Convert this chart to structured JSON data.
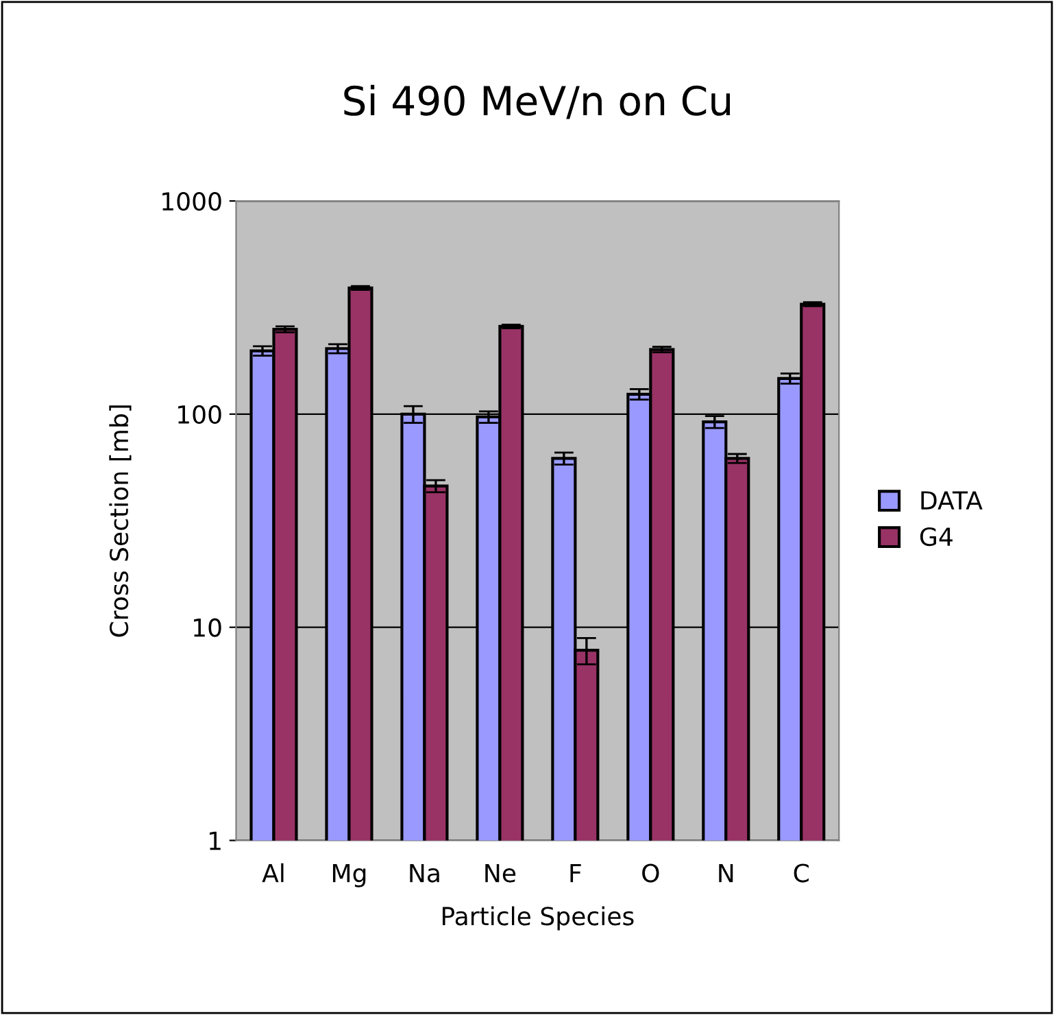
{
  "chart_data": {
    "type": "bar",
    "title": "Si 490 MeV/n on Cu",
    "xlabel": "Particle Species",
    "ylabel": "Cross Section [mb]",
    "categories": [
      "Al",
      "Mg",
      "Na",
      "Ne",
      "F",
      "O",
      "N",
      "C"
    ],
    "series": [
      {
        "name": "DATA",
        "color": "#9999ff",
        "values": [
          198,
          203,
          100,
          97,
          62,
          124,
          92,
          147
        ],
        "errors": [
          10,
          10,
          9,
          6,
          4,
          7,
          6,
          8
        ]
      },
      {
        "name": "G4",
        "color": "#993366",
        "values": [
          250,
          391,
          46,
          258,
          7.8,
          201,
          62,
          328
        ],
        "errors": [
          8,
          8,
          3,
          5,
          1.1,
          6,
          3,
          7
        ]
      }
    ],
    "log": "y",
    "ylim": [
      1,
      1000
    ],
    "yticks": [
      1,
      10,
      100,
      1000
    ],
    "grid": "y",
    "legend": "right"
  }
}
